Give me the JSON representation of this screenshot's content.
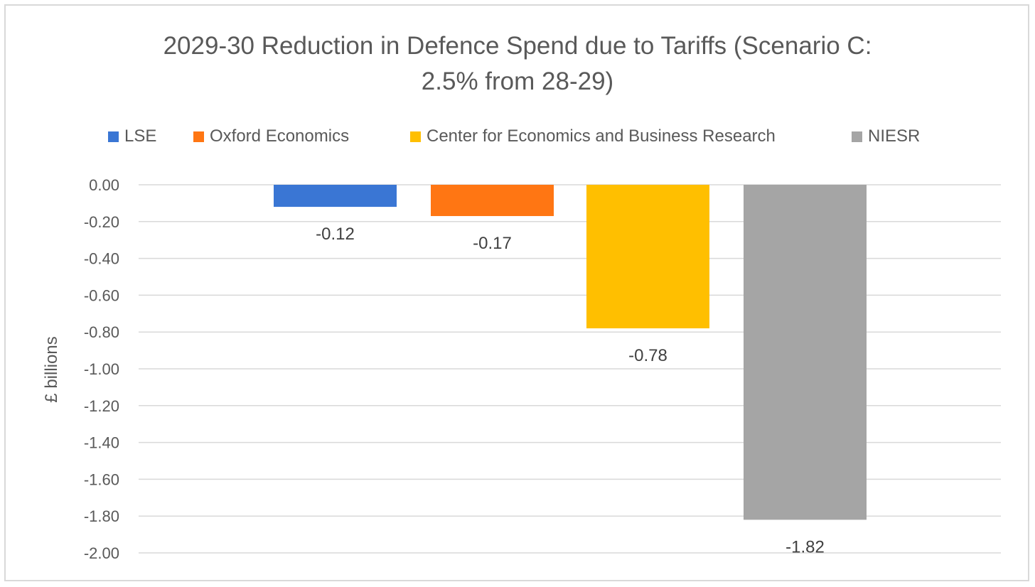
{
  "chart_data": {
    "type": "bar",
    "title_lines": [
      "2029-30 Reduction in Defence Spend due to Tariffs (Scenario C:",
      "2.5% from 28-29)"
    ],
    "xlabel": "",
    "ylabel": "£ billions",
    "ylim": [
      -2.0,
      0.0
    ],
    "y_ticks": [
      "0.00",
      "-0.20",
      "-0.40",
      "-0.60",
      "-0.80",
      "-1.00",
      "-1.20",
      "-1.40",
      "-1.60",
      "-1.80",
      "-2.00"
    ],
    "y_tick_values": [
      0,
      -0.2,
      -0.4,
      -0.6,
      -0.8,
      -1.0,
      -1.2,
      -1.4,
      -1.6,
      -1.8,
      -2.0
    ],
    "grid": true,
    "legend_position": "top",
    "series": [
      {
        "name": "LSE",
        "value": -0.12,
        "label": "-0.12",
        "color": "#3a76d4"
      },
      {
        "name": "Oxford Economics",
        "value": -0.17,
        "label": "-0.17",
        "color": "#ff7613"
      },
      {
        "name": "Center for Economics and Business Research",
        "value": -0.78,
        "label": "-0.78",
        "color": "#ffbf00"
      },
      {
        "name": "NIESR",
        "value": -1.82,
        "label": "-1.82",
        "color": "#a5a5a5"
      }
    ]
  }
}
